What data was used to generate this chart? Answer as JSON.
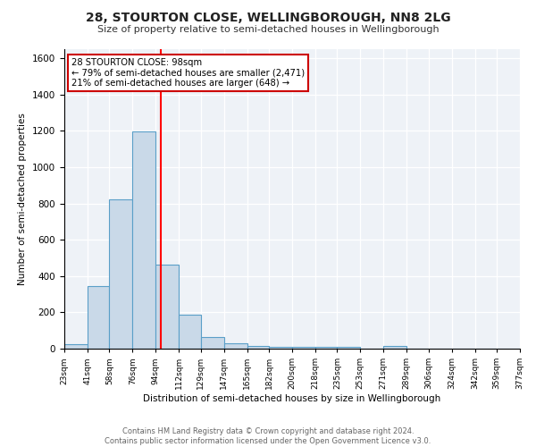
{
  "title_line1": "28, STOURTON CLOSE, WELLINGBOROUGH, NN8 2LG",
  "title_line2": "Size of property relative to semi-detached houses in Wellingborough",
  "xlabel": "Distribution of semi-detached houses by size in Wellingborough",
  "ylabel_text": "Number of semi-detached properties",
  "footer_line1": "Contains HM Land Registry data © Crown copyright and database right 2024.",
  "footer_line2": "Contains public sector information licensed under the Open Government Licence v3.0.",
  "bin_edges": [
    23,
    41,
    58,
    76,
    94,
    112,
    129,
    147,
    165,
    182,
    200,
    218,
    235,
    253,
    271,
    289,
    306,
    324,
    342,
    359,
    377
  ],
  "bin_labels": [
    "23sqm",
    "41sqm",
    "58sqm",
    "76sqm",
    "94sqm",
    "112sqm",
    "129sqm",
    "147sqm",
    "165sqm",
    "182sqm",
    "200sqm",
    "218sqm",
    "235sqm",
    "253sqm",
    "271sqm",
    "289sqm",
    "306sqm",
    "324sqm",
    "342sqm",
    "359sqm",
    "377sqm"
  ],
  "bar_heights": [
    25,
    345,
    825,
    1195,
    465,
    185,
    65,
    30,
    15,
    10,
    10,
    10,
    10,
    0,
    15,
    0,
    0,
    0,
    0,
    0
  ],
  "bar_color": "#c9d9e8",
  "bar_edge_color": "#5a9fc8",
  "red_line_x": 98,
  "annotation_title": "28 STOURTON CLOSE: 98sqm",
  "annotation_line1": "← 79% of semi-detached houses are smaller (2,471)",
  "annotation_line2": "21% of semi-detached houses are larger (648) →",
  "annotation_box_color": "#ffffff",
  "annotation_box_edge": "#cc0000",
  "ylim": [
    0,
    1650
  ],
  "yticks": [
    0,
    200,
    400,
    600,
    800,
    1000,
    1200,
    1400,
    1600
  ],
  "background_color": "#eef2f7"
}
